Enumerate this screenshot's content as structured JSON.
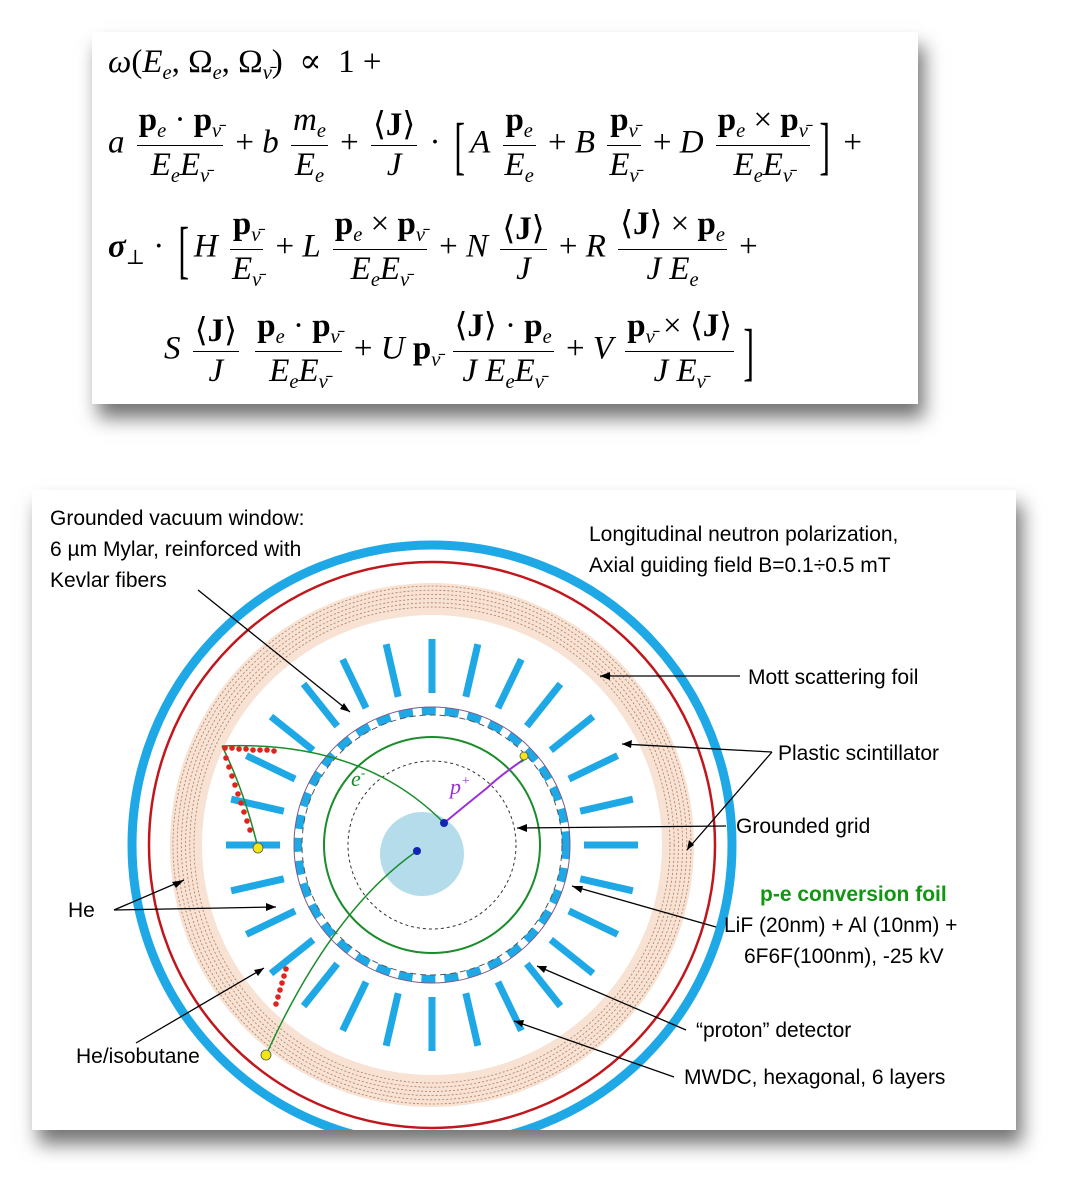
{
  "formula": {
    "line1": {
      "omega": "ω",
      "args": "(E",
      "e1": "e",
      "sep1": ", Ω",
      "e2": "e",
      "sep2": ", Ω",
      "nu": "ν̄",
      "close": ")",
      "prop": "∝",
      "one": "1",
      "plus": "+"
    },
    "coefficients": [
      "a",
      "b",
      "A",
      "B",
      "D",
      "H",
      "L",
      "N",
      "R",
      "S",
      "U",
      "V"
    ],
    "sigma": "σ",
    "perp": "⊥"
  },
  "diagram": {
    "labels": {
      "vacuum_window_1": "Grounded vacuum window:",
      "vacuum_window_2": "6 µm Mylar, reinforced with",
      "vacuum_window_3": "Kevlar fibers",
      "polarization_1": "Longitudinal neutron polarization,",
      "polarization_2": "Axial guiding field  B=0.1÷0.5 mT",
      "mott": "Mott scattering foil",
      "scintillator": "Plastic scintillator",
      "grid": "Grounded grid",
      "conversion_title": "p-e conversion foil",
      "conversion_1": "LiF (20nm) + Al (10nm) +",
      "conversion_2": "6F6F(100nm),  -25 kV",
      "proton_detector": "“proton” detector",
      "mwdc": "MWDC, hexagonal, 6 layers",
      "he": "He",
      "he_isobutane": "He/isobutane",
      "electron": "e",
      "electron_sup": "-",
      "proton": "p",
      "proton_sup": "+"
    },
    "colors": {
      "outer_ring": "#1ea8e6",
      "mott_ring": "#c0161c",
      "mwdc_fill": "#f7e2d4",
      "scintillator": "#1ea8e6",
      "inner_green": "#1a8c2a",
      "proton_track": "#9b2fd6",
      "hit_dots": "#e0241b",
      "central_disk": "#b5dceb",
      "conversion_label": "#119611"
    }
  }
}
